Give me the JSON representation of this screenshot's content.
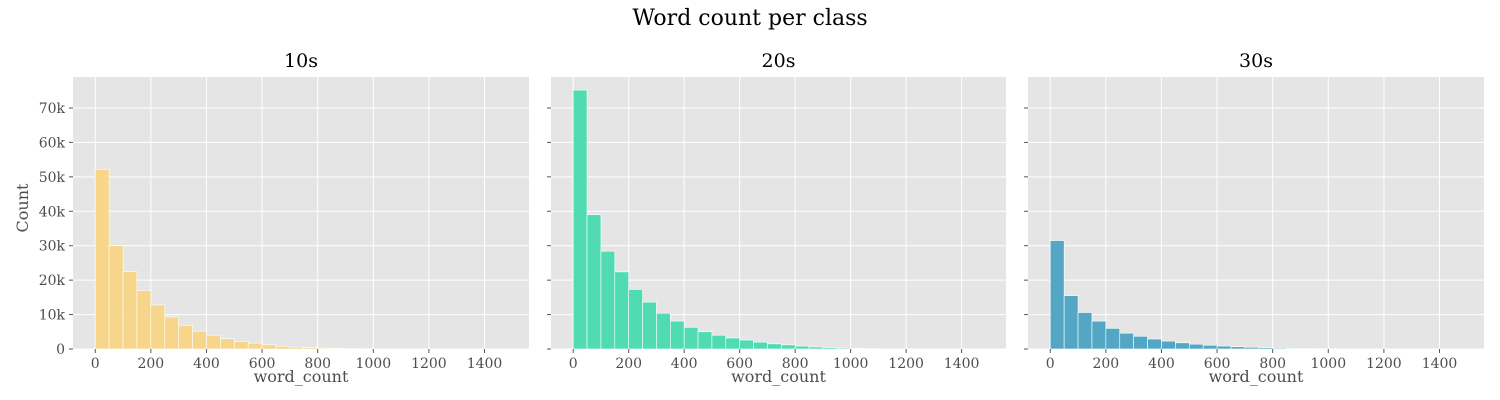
{
  "chart_data": {
    "type": "bar",
    "title": "Word count per class",
    "ylabel": "Count",
    "xlabel": "word_count",
    "xlim": [
      -80,
      1560
    ],
    "ylim": [
      0,
      79000
    ],
    "xticks": [
      0,
      200,
      400,
      600,
      800,
      1000,
      1200,
      1400
    ],
    "yticks": [
      0,
      10000,
      20000,
      30000,
      40000,
      50000,
      60000,
      70000
    ],
    "ytick_labels": [
      "0",
      "10k",
      "20k",
      "30k",
      "40k",
      "50k",
      "60k",
      "70k"
    ],
    "bin_width": 50,
    "bin_start": 0,
    "grid": true,
    "panels": [
      {
        "title": "10s",
        "color": "#f8d37f",
        "values": [
          52200,
          30000,
          22500,
          17000,
          12800,
          9300,
          6900,
          5200,
          4000,
          3000,
          2200,
          1700,
          1200,
          800,
          550,
          380,
          250,
          170,
          110,
          80,
          50,
          35,
          25,
          15,
          10,
          8,
          6,
          5,
          4,
          3
        ]
      },
      {
        "title": "20s",
        "color": "#40d9ad",
        "values": [
          75200,
          39000,
          28400,
          22400,
          17300,
          13600,
          10400,
          8100,
          6300,
          5000,
          4000,
          3200,
          2600,
          2000,
          1500,
          1200,
          850,
          600,
          420,
          280,
          170,
          100,
          60,
          35,
          20,
          12,
          8,
          5,
          3,
          2
        ]
      },
      {
        "title": "30s",
        "color": "#44a0c0",
        "values": [
          31500,
          15500,
          10600,
          8100,
          6000,
          4600,
          3700,
          2900,
          2300,
          1800,
          1400,
          1100,
          850,
          650,
          500,
          370,
          270,
          190,
          130,
          90,
          60,
          40,
          25,
          15,
          10,
          6,
          4,
          3,
          2,
          1
        ]
      }
    ]
  }
}
